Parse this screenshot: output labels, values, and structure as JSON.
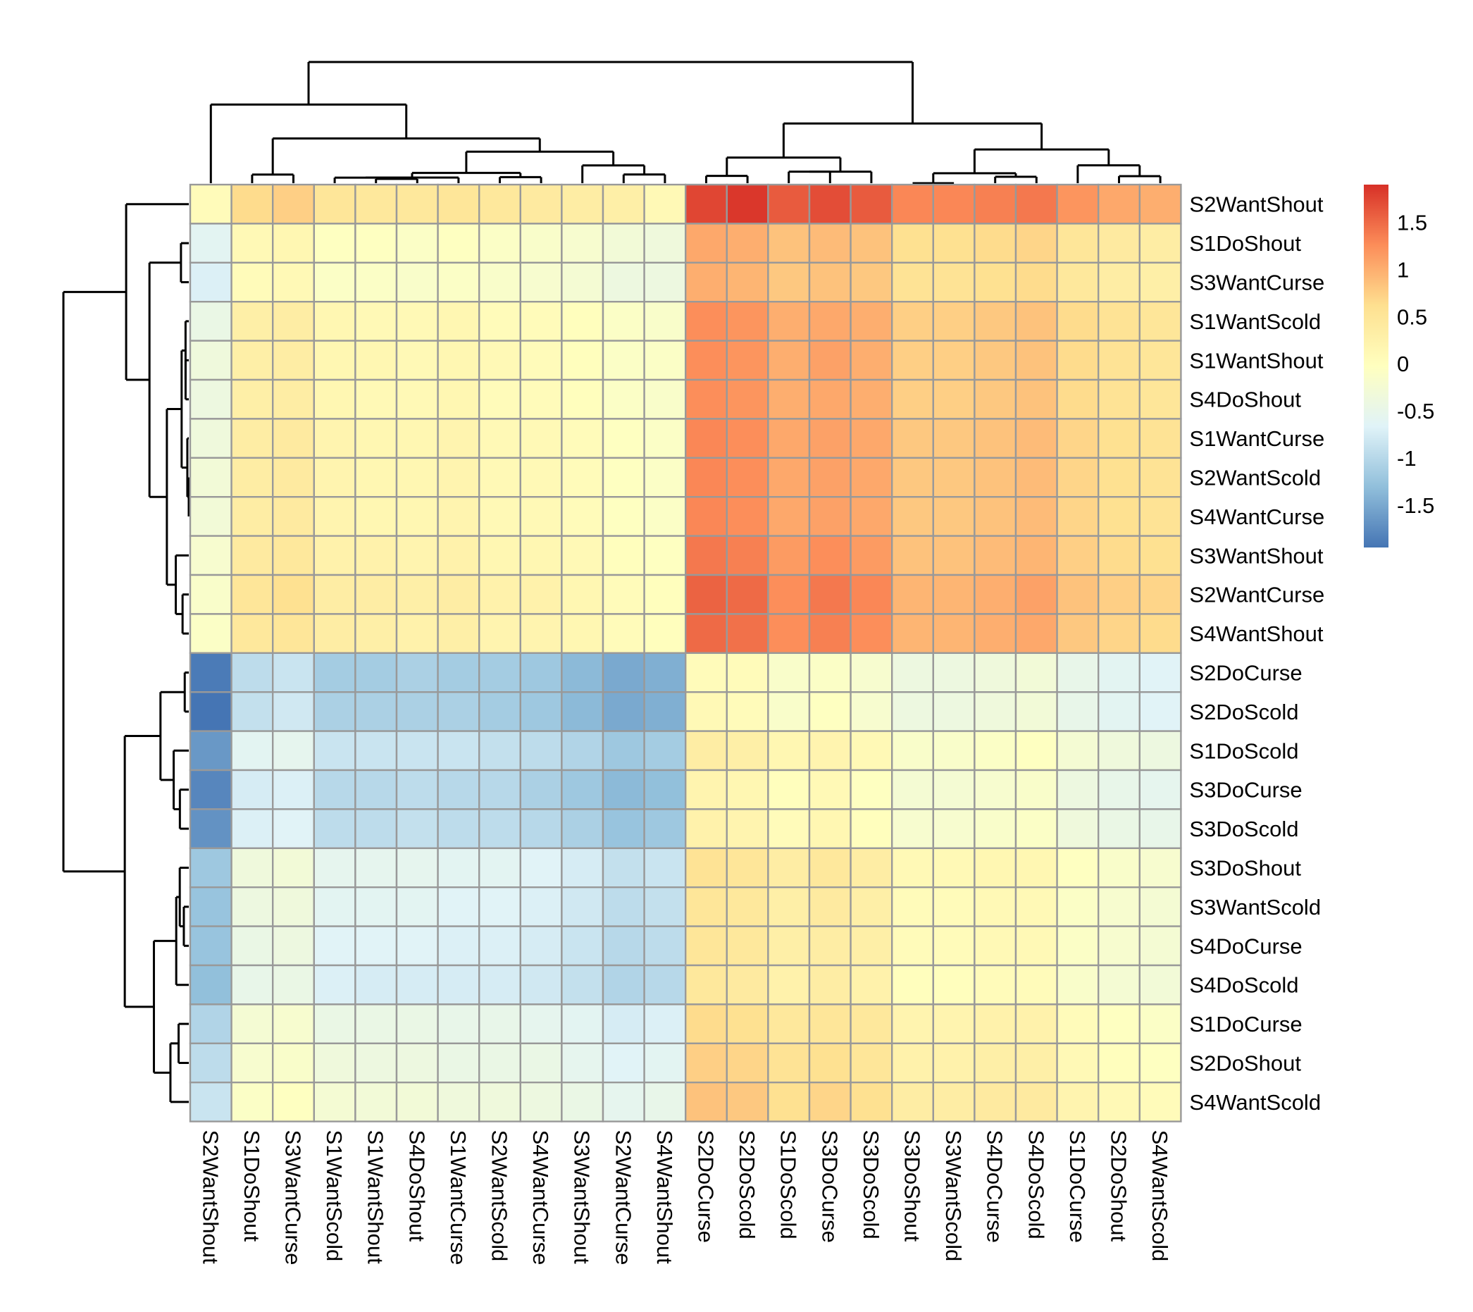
{
  "chart_data": {
    "type": "heatmap",
    "title": "",
    "row_labels": [
      "S2WantShout",
      "S1DoShout",
      "S3WantCurse",
      "S1WantScold",
      "S1WantShout",
      "S4DoShout",
      "S1WantCurse",
      "S2WantScold",
      "S4WantCurse",
      "S3WantShout",
      "S2WantCurse",
      "S4WantShout",
      "S2DoCurse",
      "S2DoScold",
      "S1DoScold",
      "S3DoCurse",
      "S3DoScold",
      "S3DoShout",
      "S3WantScold",
      "S4DoCurse",
      "S4DoScold",
      "S1DoCurse",
      "S2DoShout",
      "S4WantScold"
    ],
    "col_labels": [
      "S2WantShout",
      "S1DoShout",
      "S3WantCurse",
      "S1WantScold",
      "S1WantShout",
      "S4DoShout",
      "S1WantCurse",
      "S2WantScold",
      "S4WantCurse",
      "S3WantShout",
      "S2WantCurse",
      "S4WantShout",
      "S2DoCurse",
      "S2DoScold",
      "S1DoScold",
      "S3DoCurse",
      "S3DoScold",
      "S3DoShout",
      "S3WantScold",
      "S4DoCurse",
      "S4DoScold",
      "S1DoCurse",
      "S2DoShout",
      "S4WantScold"
    ],
    "values": [
      [
        0.05,
        0.65,
        0.75,
        0.5,
        0.45,
        0.45,
        0.5,
        0.45,
        0.4,
        0.35,
        0.3,
        0.1,
        1.75,
        1.85,
        1.6,
        1.7,
        1.6,
        1.3,
        1.3,
        1.35,
        1.4,
        1.2,
        1.05,
        1.0
      ],
      [
        -0.6,
        0.1,
        0.15,
        -0.05,
        -0.05,
        -0.1,
        -0.05,
        -0.1,
        -0.15,
        -0.2,
        -0.3,
        -0.35,
        1.05,
        1.0,
        0.85,
        0.9,
        0.85,
        0.6,
        0.6,
        0.65,
        0.7,
        0.5,
        0.4,
        0.35
      ],
      [
        -0.7,
        0.05,
        0.1,
        -0.1,
        -0.1,
        -0.15,
        -0.1,
        -0.15,
        -0.2,
        -0.25,
        -0.4,
        -0.4,
        1.0,
        0.95,
        0.8,
        0.85,
        0.8,
        0.55,
        0.55,
        0.6,
        0.65,
        0.45,
        0.35,
        0.3
      ],
      [
        -0.45,
        0.3,
        0.35,
        0.15,
        0.1,
        0.1,
        0.15,
        0.05,
        0.05,
        0.0,
        -0.1,
        -0.15,
        1.25,
        1.2,
        1.0,
        1.05,
        1.0,
        0.75,
        0.75,
        0.8,
        0.85,
        0.65,
        0.55,
        0.5
      ],
      [
        -0.35,
        0.3,
        0.35,
        0.15,
        0.15,
        0.1,
        0.15,
        0.1,
        0.05,
        0.0,
        -0.1,
        -0.1,
        1.25,
        1.2,
        1.0,
        1.1,
        1.0,
        0.75,
        0.75,
        0.8,
        0.85,
        0.65,
        0.55,
        0.5
      ],
      [
        -0.4,
        0.3,
        0.35,
        0.15,
        0.1,
        0.1,
        0.15,
        0.05,
        0.05,
        0.0,
        -0.1,
        -0.15,
        1.25,
        1.2,
        1.0,
        1.05,
        1.0,
        0.75,
        0.75,
        0.8,
        0.85,
        0.65,
        0.55,
        0.5
      ],
      [
        -0.35,
        0.35,
        0.4,
        0.2,
        0.15,
        0.15,
        0.2,
        0.1,
        0.1,
        0.05,
        -0.05,
        -0.1,
        1.3,
        1.25,
        1.05,
        1.1,
        1.05,
        0.8,
        0.8,
        0.85,
        0.9,
        0.7,
        0.6,
        0.55
      ],
      [
        -0.3,
        0.35,
        0.4,
        0.2,
        0.15,
        0.15,
        0.2,
        0.1,
        0.1,
        0.05,
        -0.05,
        -0.1,
        1.3,
        1.25,
        1.05,
        1.1,
        1.05,
        0.8,
        0.8,
        0.85,
        0.9,
        0.7,
        0.6,
        0.55
      ],
      [
        -0.3,
        0.35,
        0.4,
        0.2,
        0.15,
        0.15,
        0.2,
        0.1,
        0.1,
        0.05,
        -0.05,
        -0.1,
        1.3,
        1.25,
        1.05,
        1.1,
        1.05,
        0.8,
        0.8,
        0.85,
        0.9,
        0.7,
        0.6,
        0.55
      ],
      [
        -0.2,
        0.4,
        0.45,
        0.25,
        0.25,
        0.2,
        0.25,
        0.15,
        0.15,
        0.1,
        0.0,
        -0.05,
        1.4,
        1.35,
        1.15,
        1.25,
        1.15,
        0.85,
        0.85,
        0.9,
        0.95,
        0.75,
        0.65,
        0.6
      ],
      [
        -0.15,
        0.5,
        0.6,
        0.35,
        0.35,
        0.3,
        0.35,
        0.25,
        0.25,
        0.15,
        0.05,
        0.0,
        1.55,
        1.5,
        1.25,
        1.4,
        1.3,
        0.95,
        0.95,
        1.0,
        1.1,
        0.85,
        0.75,
        0.7
      ],
      [
        -0.1,
        0.45,
        0.5,
        0.35,
        0.3,
        0.25,
        0.3,
        0.2,
        0.2,
        0.15,
        0.05,
        0.0,
        1.5,
        1.45,
        1.25,
        1.35,
        1.25,
        0.95,
        0.95,
        1.0,
        1.05,
        0.8,
        0.7,
        0.65
      ],
      [
        -1.9,
        -0.95,
        -0.85,
        -1.15,
        -1.15,
        -1.1,
        -1.15,
        -1.15,
        -1.2,
        -1.35,
        -1.5,
        -1.45,
        0.05,
        0.05,
        -0.15,
        -0.1,
        -0.2,
        -0.4,
        -0.4,
        -0.35,
        -0.3,
        -0.5,
        -0.6,
        -0.65
      ],
      [
        -1.95,
        -0.9,
        -0.8,
        -1.1,
        -1.1,
        -1.1,
        -1.1,
        -1.15,
        -1.2,
        -1.35,
        -1.5,
        -1.45,
        0.1,
        0.05,
        -0.15,
        -0.05,
        -0.2,
        -0.4,
        -0.4,
        -0.35,
        -0.3,
        -0.5,
        -0.6,
        -0.65
      ],
      [
        -1.65,
        -0.6,
        -0.55,
        -0.85,
        -0.85,
        -0.85,
        -0.85,
        -0.9,
        -0.95,
        -1.05,
        -1.2,
        -1.15,
        0.35,
        0.3,
        0.15,
        0.2,
        0.1,
        -0.15,
        -0.15,
        -0.1,
        -0.05,
        -0.25,
        -0.35,
        -0.4
      ],
      [
        -1.8,
        -0.75,
        -0.7,
        -1.0,
        -1.0,
        -0.95,
        -1.0,
        -1.0,
        -1.1,
        -1.2,
        -1.35,
        -1.3,
        0.2,
        0.15,
        0.0,
        0.1,
        -0.05,
        -0.25,
        -0.25,
        -0.2,
        -0.15,
        -0.4,
        -0.5,
        -0.55
      ],
      [
        -1.7,
        -0.7,
        -0.65,
        -0.95,
        -0.95,
        -0.9,
        -0.95,
        -0.95,
        -1.0,
        -1.1,
        -1.25,
        -1.2,
        0.25,
        0.2,
        0.05,
        0.15,
        0.0,
        -0.2,
        -0.2,
        -0.15,
        -0.1,
        -0.35,
        -0.45,
        -0.5
      ],
      [
        -1.2,
        -0.35,
        -0.3,
        -0.55,
        -0.55,
        -0.55,
        -0.6,
        -0.6,
        -0.65,
        -0.75,
        -0.9,
        -0.85,
        0.55,
        0.5,
        0.35,
        0.45,
        0.35,
        0.1,
        0.1,
        0.15,
        0.15,
        -0.05,
        -0.15,
        -0.2
      ],
      [
        -1.25,
        -0.4,
        -0.35,
        -0.6,
        -0.6,
        -0.6,
        -0.65,
        -0.65,
        -0.7,
        -0.8,
        -0.95,
        -0.9,
        0.5,
        0.45,
        0.3,
        0.4,
        0.3,
        0.05,
        0.05,
        0.1,
        0.1,
        -0.1,
        -0.2,
        -0.25
      ],
      [
        -1.25,
        -0.45,
        -0.4,
        -0.65,
        -0.65,
        -0.65,
        -0.7,
        -0.7,
        -0.75,
        -0.85,
        -1.0,
        -0.95,
        0.5,
        0.45,
        0.3,
        0.35,
        0.3,
        0.05,
        0.05,
        0.1,
        0.1,
        -0.1,
        -0.2,
        -0.25
      ],
      [
        -1.3,
        -0.5,
        -0.45,
        -0.7,
        -0.75,
        -0.75,
        -0.75,
        -0.75,
        -0.8,
        -0.9,
        -1.05,
        -1.0,
        0.45,
        0.4,
        0.25,
        0.35,
        0.25,
        0.0,
        0.0,
        0.05,
        0.05,
        -0.15,
        -0.25,
        -0.3
      ],
      [
        -1.05,
        -0.25,
        -0.2,
        -0.45,
        -0.45,
        -0.45,
        -0.5,
        -0.5,
        -0.55,
        -0.6,
        -0.75,
        -0.7,
        0.65,
        0.6,
        0.45,
        0.5,
        0.45,
        0.2,
        0.2,
        0.25,
        0.25,
        0.05,
        -0.05,
        -0.1
      ],
      [
        -0.95,
        -0.2,
        -0.15,
        -0.35,
        -0.4,
        -0.4,
        -0.45,
        -0.45,
        -0.45,
        -0.55,
        -0.65,
        -0.6,
        0.75,
        0.7,
        0.55,
        0.6,
        0.5,
        0.25,
        0.25,
        0.3,
        0.3,
        0.1,
        0.0,
        -0.05
      ],
      [
        -0.85,
        -0.1,
        -0.05,
        -0.25,
        -0.3,
        -0.3,
        -0.35,
        -0.35,
        -0.4,
        -0.45,
        -0.55,
        -0.5,
        0.85,
        0.8,
        0.6,
        0.7,
        0.6,
        0.35,
        0.35,
        0.4,
        0.4,
        0.2,
        0.1,
        0.05
      ]
    ],
    "vmin": -1.95,
    "vmax": 1.9,
    "palette": [
      "#4575B4",
      "#91BFDB",
      "#E0F3F8",
      "#FFFFBF",
      "#FEE090",
      "#FC8D59",
      "#D73027"
    ],
    "grid_color": "#999999",
    "legend": {
      "position": "right",
      "ticks": [
        "1.5",
        "1",
        "0.5",
        "0",
        "-0.5",
        "-1",
        "-1.5"
      ],
      "tick_values": [
        1.5,
        1,
        0.5,
        0,
        -0.5,
        -1,
        -1.5
      ]
    },
    "row_dendrogram": "left",
    "col_dendrogram": "top"
  }
}
